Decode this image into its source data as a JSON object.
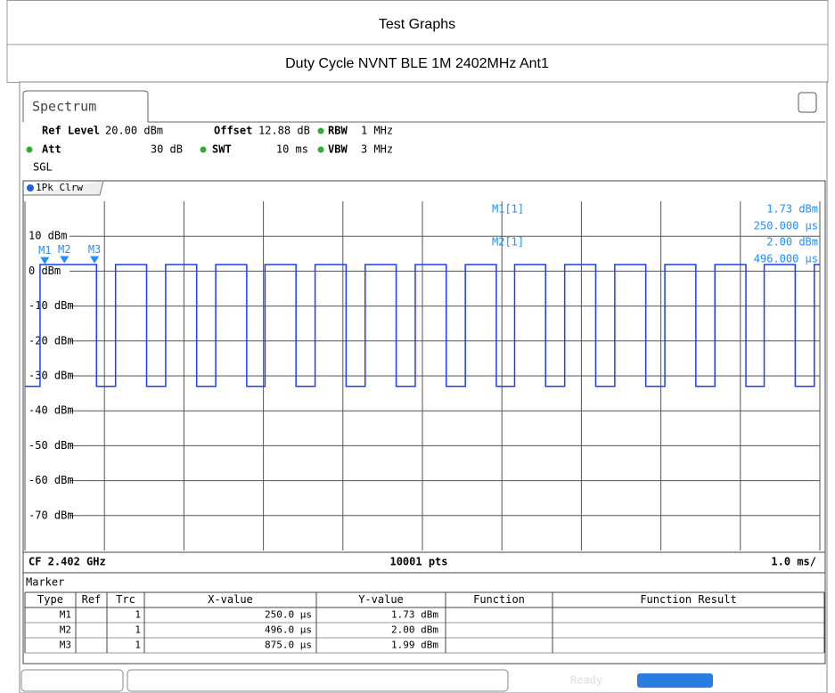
{
  "header": {
    "title": "Test Graphs",
    "subtitle": "Duty Cycle NVNT BLE 1M 2402MHz Ant1"
  },
  "tab": "Spectrum",
  "settings": {
    "ref_level": {
      "label": "Ref Level",
      "value": "20.00 dBm"
    },
    "offset": {
      "label": "Offset",
      "value": "12.88 dB"
    },
    "rbw": {
      "label": "RBW",
      "value": "1 MHz"
    },
    "att": {
      "label": "Att",
      "value": "30 dB"
    },
    "swt": {
      "label": "SWT",
      "value": "10 ms"
    },
    "vbw": {
      "label": "VBW",
      "value": "3 MHz"
    },
    "mode": "SGL"
  },
  "trace_label": "1Pk Clrw",
  "chart_data": {
    "type": "line",
    "color": "#1f3cff",
    "x": [
      0,
      0.19,
      0.19,
      0.9,
      0.9,
      1.14,
      1.14,
      1.53,
      1.53,
      1.77,
      1.77,
      2.16,
      2.16,
      2.4,
      2.4,
      2.79,
      2.79,
      3.02,
      3.02,
      3.41,
      3.41,
      3.65,
      3.65,
      4.04,
      4.04,
      4.28,
      4.28,
      4.67,
      4.67,
      4.91,
      4.91,
      5.3,
      5.3,
      5.54,
      5.54,
      5.93,
      5.93,
      6.16,
      6.16,
      6.55,
      6.55,
      6.79,
      6.79,
      7.18,
      7.18,
      7.42,
      7.42,
      7.81,
      7.81,
      8.05,
      8.05,
      8.44,
      8.44,
      8.68,
      8.68,
      9.07,
      9.07,
      9.3,
      9.3,
      9.69,
      9.69,
      9.93,
      9.93,
      10
    ],
    "values": [
      -33,
      -33,
      1.9,
      1.9,
      -33,
      -33,
      1.9,
      1.9,
      -33,
      -33,
      1.9,
      1.9,
      -33,
      -33,
      1.9,
      1.9,
      -33,
      -33,
      1.9,
      1.9,
      -33,
      -33,
      1.9,
      1.9,
      -33,
      -33,
      1.9,
      1.9,
      -33,
      -33,
      1.9,
      1.9,
      -33,
      -33,
      1.9,
      1.9,
      -33,
      -33,
      1.9,
      1.9,
      -33,
      -33,
      1.9,
      1.9,
      -33,
      -33,
      1.9,
      1.9,
      -33,
      -33,
      1.9,
      1.9,
      -33,
      -33,
      1.9,
      1.9,
      -33,
      -33,
      1.9,
      1.9,
      -33,
      -33,
      1.9,
      1.9
    ],
    "xlim": [
      0,
      10
    ],
    "xticks": [
      0,
      1,
      2,
      3,
      4,
      5,
      6,
      7,
      8,
      9,
      10
    ],
    "ylim": [
      -80,
      20
    ],
    "yticks": [
      {
        "value": 10,
        "label": "10 dBm"
      },
      {
        "value": 0,
        "label": "0 dBm"
      },
      {
        "value": -10,
        "label": "-10 dBm"
      },
      {
        "value": -20,
        "label": "-20 dBm"
      },
      {
        "value": -30,
        "label": "-30 dBm"
      },
      {
        "value": -40,
        "label": "-40 dBm"
      },
      {
        "value": -50,
        "label": "-50 dBm"
      },
      {
        "value": -60,
        "label": "-60 dBm"
      },
      {
        "value": -70,
        "label": "-70 dBm"
      }
    ],
    "grid": true,
    "markers": [
      {
        "label": "M1",
        "x": 0.25,
        "y": 1.73
      },
      {
        "label": "M2",
        "x": 0.496,
        "y": 2.0
      },
      {
        "label": "M3",
        "x": 0.875,
        "y": 1.99
      }
    ],
    "marker_readout": [
      {
        "name": "M1[1]",
        "y_label": "1.73 dBm",
        "x_label": "250.000 µs"
      },
      {
        "name": "M2[1]",
        "y_label": "2.00 dBm",
        "x_label": "496.000 µs"
      }
    ],
    "footer": {
      "center": "CF 2.402 GHz",
      "points": "10001 pts",
      "scale": "1.0 ms/"
    }
  },
  "marker_table": {
    "title": "Marker",
    "columns": [
      "Type",
      "Ref",
      "Trc",
      "X-value",
      "Y-value",
      "Function",
      "Function Result"
    ],
    "rows": [
      {
        "type": "M1",
        "trc": "1",
        "x": "250.0 µs",
        "y": "1.73 dBm"
      },
      {
        "type": "M2",
        "trc": "1",
        "x": "496.0 µs",
        "y": "2.00 dBm"
      },
      {
        "type": "M3",
        "trc": "1",
        "x": "875.0 µs",
        "y": "1.99 dBm"
      }
    ]
  },
  "status": "Ready"
}
